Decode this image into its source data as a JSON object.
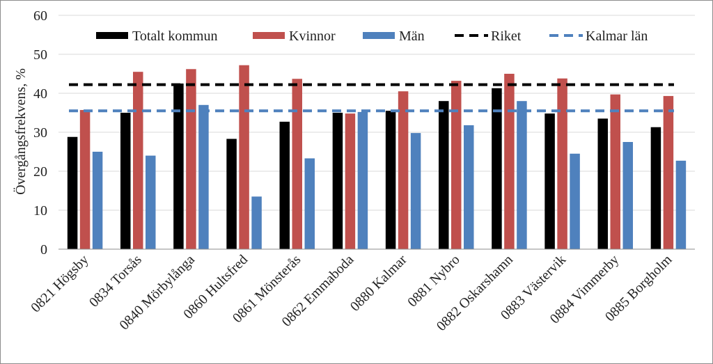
{
  "chart_data": {
    "type": "bar",
    "ylabel": "Övergångsfrekvens, %",
    "ylim": [
      0,
      60
    ],
    "yticks": [
      0,
      10,
      20,
      30,
      40,
      50,
      60
    ],
    "grid": true,
    "legend_position": "top",
    "categories": [
      "0821 Högsby",
      "0834 Torsås",
      "0840 Mörbylånga",
      "0860 Hultsfred",
      "0861 Mönsterås",
      "0862 Emmaboda",
      "0880 Kalmar",
      "0881 Nybro",
      "0882 Oskarshamn",
      "0883 Västervik",
      "0884 Vimmerby",
      "0885 Borgholm"
    ],
    "series": [
      {
        "name": "Totalt kommun",
        "color": "#000000",
        "values": [
          28.8,
          35.0,
          42.5,
          28.3,
          32.7,
          35.0,
          35.5,
          38.0,
          41.3,
          34.8,
          33.5,
          31.3
        ]
      },
      {
        "name": "Kvinnor",
        "color": "#c0504d",
        "values": [
          35.7,
          45.5,
          46.2,
          47.2,
          43.7,
          34.8,
          40.5,
          43.2,
          45.0,
          43.8,
          39.7,
          39.3
        ]
      },
      {
        "name": "Män",
        "color": "#4f81bd",
        "values": [
          25.0,
          24.0,
          37.0,
          13.5,
          23.3,
          35.2,
          29.8,
          31.8,
          38.0,
          24.5,
          27.5,
          22.7
        ]
      }
    ],
    "reference_lines": [
      {
        "name": "Riket",
        "value": 42.2,
        "color": "#000000",
        "style": "dashed"
      },
      {
        "name": "Kalmar län",
        "value": 35.5,
        "color": "#4f81bd",
        "style": "dashed"
      }
    ]
  }
}
